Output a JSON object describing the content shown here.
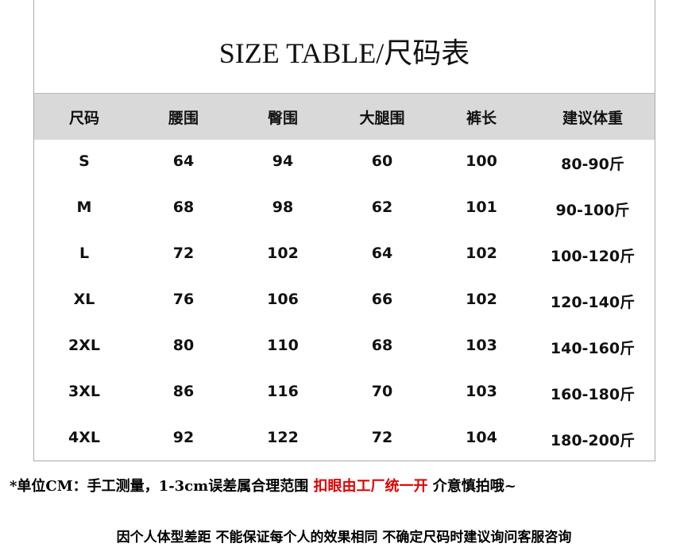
{
  "title": "SIZE TABLE/尺码表",
  "table": {
    "header": [
      "尺码",
      "腰围",
      "臀围",
      "大腿围",
      "裤长",
      "建议体重"
    ],
    "rows": [
      [
        "S",
        64,
        94,
        60,
        100,
        "80-90斤"
      ],
      [
        "M",
        68,
        98,
        62,
        101,
        "90-100斤"
      ],
      [
        "L",
        72,
        102,
        64,
        102,
        "100-120斤"
      ],
      [
        "XL",
        76,
        106,
        66,
        102,
        "120-140斤"
      ],
      [
        "2XL",
        80,
        110,
        68,
        103,
        "140-160斤"
      ],
      [
        "3XL",
        86,
        116,
        70,
        103,
        "160-180斤"
      ],
      [
        "4XL",
        92,
        122,
        72,
        104,
        "180-200斤"
      ]
    ]
  },
  "notes": {
    "line1": [
      "*单位CM：手工测量，1-3cm误差属合理范围",
      "扣眼由工厂统一开",
      "介意慎拍哦~"
    ],
    "line2": "因个人体型差距 不能保证每个人的效果相同 不确定尺码时建议询问客服咨询"
  }
}
